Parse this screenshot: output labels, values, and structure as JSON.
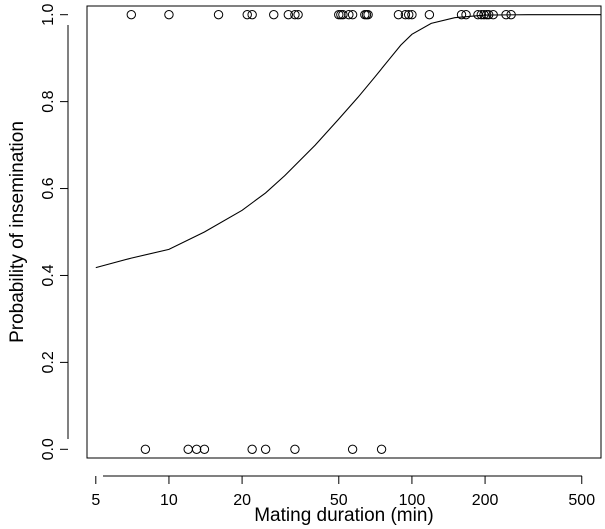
{
  "chart_data": {
    "type": "scatter",
    "title": "",
    "xlabel": "Mating duration (min)",
    "ylabel": "Probability of insemination",
    "x_scale": "log",
    "xlim": [
      4.6,
      600
    ],
    "ylim": [
      -0.02,
      1.02
    ],
    "grid": false,
    "x_ticks": [
      {
        "value": 5,
        "label": "5"
      },
      {
        "value": 10,
        "label": "10"
      },
      {
        "value": 20,
        "label": "20"
      },
      {
        "value": 50,
        "label": "50"
      },
      {
        "value": 100,
        "label": "100"
      },
      {
        "value": 200,
        "label": "200"
      },
      {
        "value": 500,
        "label": "500"
      }
    ],
    "y_ticks": [
      {
        "value": 0.0,
        "label": "0.0"
      },
      {
        "value": 0.2,
        "label": "0.2"
      },
      {
        "value": 0.4,
        "label": "0.4"
      },
      {
        "value": 0.6,
        "label": "0.6"
      },
      {
        "value": 0.8,
        "label": "0.8"
      },
      {
        "value": 1.0,
        "label": "1.0"
      }
    ],
    "series": [
      {
        "type": "scatter",
        "marker": "open-circle",
        "points": [
          {
            "x": 7,
            "y": 1
          },
          {
            "x": 10,
            "y": 1
          },
          {
            "x": 16,
            "y": 1
          },
          {
            "x": 21,
            "y": 1
          },
          {
            "x": 22,
            "y": 1
          },
          {
            "x": 27,
            "y": 1
          },
          {
            "x": 31,
            "y": 1
          },
          {
            "x": 33,
            "y": 1
          },
          {
            "x": 34,
            "y": 1
          },
          {
            "x": 50,
            "y": 1
          },
          {
            "x": 51,
            "y": 1
          },
          {
            "x": 52,
            "y": 1
          },
          {
            "x": 55,
            "y": 1
          },
          {
            "x": 57,
            "y": 1
          },
          {
            "x": 64,
            "y": 1
          },
          {
            "x": 65,
            "y": 1
          },
          {
            "x": 66,
            "y": 1
          },
          {
            "x": 88,
            "y": 1
          },
          {
            "x": 94,
            "y": 1
          },
          {
            "x": 97,
            "y": 1
          },
          {
            "x": 100,
            "y": 1
          },
          {
            "x": 118,
            "y": 1
          },
          {
            "x": 160,
            "y": 1
          },
          {
            "x": 167,
            "y": 1
          },
          {
            "x": 187,
            "y": 1
          },
          {
            "x": 193,
            "y": 1
          },
          {
            "x": 198,
            "y": 1
          },
          {
            "x": 203,
            "y": 1
          },
          {
            "x": 207,
            "y": 1
          },
          {
            "x": 216,
            "y": 1
          },
          {
            "x": 244,
            "y": 1
          },
          {
            "x": 256,
            "y": 1
          },
          {
            "x": 8,
            "y": 0
          },
          {
            "x": 12,
            "y": 0
          },
          {
            "x": 13,
            "y": 0
          },
          {
            "x": 14,
            "y": 0
          },
          {
            "x": 22,
            "y": 0
          },
          {
            "x": 25,
            "y": 0
          },
          {
            "x": 33,
            "y": 0
          },
          {
            "x": 57,
            "y": 0
          },
          {
            "x": 75,
            "y": 0
          }
        ]
      },
      {
        "type": "line",
        "points": [
          {
            "x": 5,
            "y": 0.418
          },
          {
            "x": 7,
            "y": 0.44
          },
          {
            "x": 10,
            "y": 0.46
          },
          {
            "x": 14,
            "y": 0.5
          },
          {
            "x": 20,
            "y": 0.55
          },
          {
            "x": 25,
            "y": 0.59
          },
          {
            "x": 30,
            "y": 0.63
          },
          {
            "x": 40,
            "y": 0.7
          },
          {
            "x": 50,
            "y": 0.76
          },
          {
            "x": 60,
            "y": 0.81
          },
          {
            "x": 70,
            "y": 0.855
          },
          {
            "x": 80,
            "y": 0.895
          },
          {
            "x": 90,
            "y": 0.93
          },
          {
            "x": 100,
            "y": 0.955
          },
          {
            "x": 120,
            "y": 0.98
          },
          {
            "x": 150,
            "y": 0.993
          },
          {
            "x": 200,
            "y": 0.999
          },
          {
            "x": 300,
            "y": 1.0
          },
          {
            "x": 600,
            "y": 1.0
          }
        ]
      }
    ]
  }
}
